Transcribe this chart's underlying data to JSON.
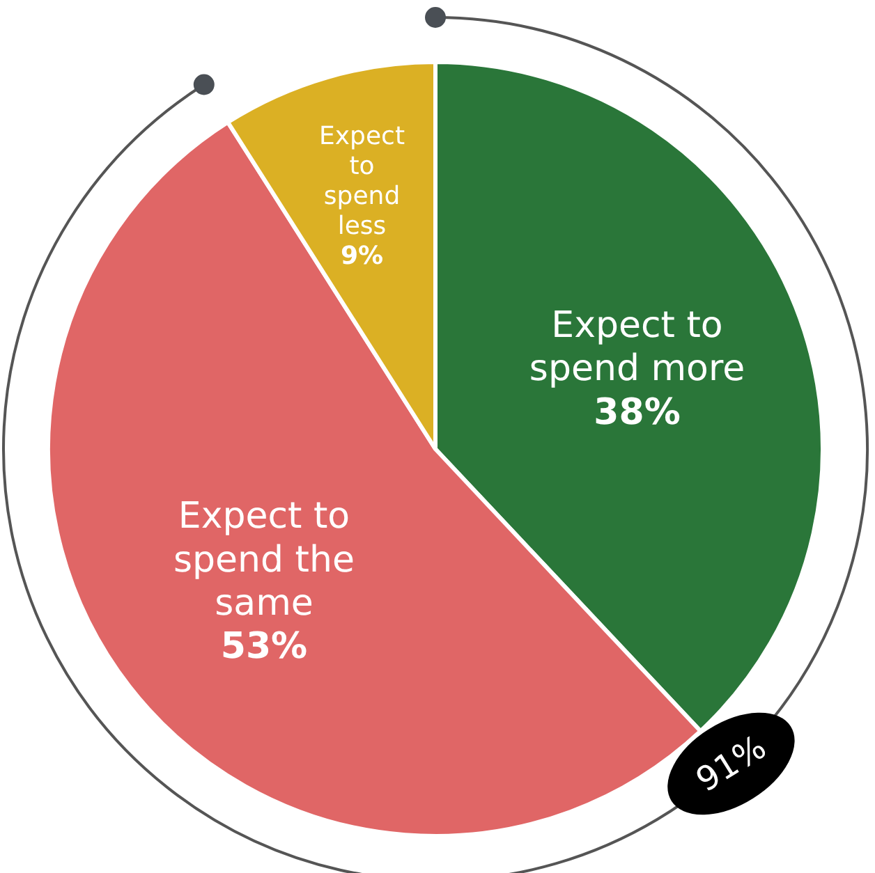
{
  "chart_data": {
    "type": "pie",
    "categories": [
      "Expect to\nspend more",
      "Expect to\nspend the\nsame",
      "Expect\nto\nspend\nless"
    ],
    "values": [
      38,
      53,
      9
    ],
    "colors": [
      "#2a7639",
      "#e06666",
      "#dbb024"
    ],
    "value_labels": [
      "38%",
      "53%",
      "9%"
    ],
    "annotations": [
      "91%"
    ]
  }
}
